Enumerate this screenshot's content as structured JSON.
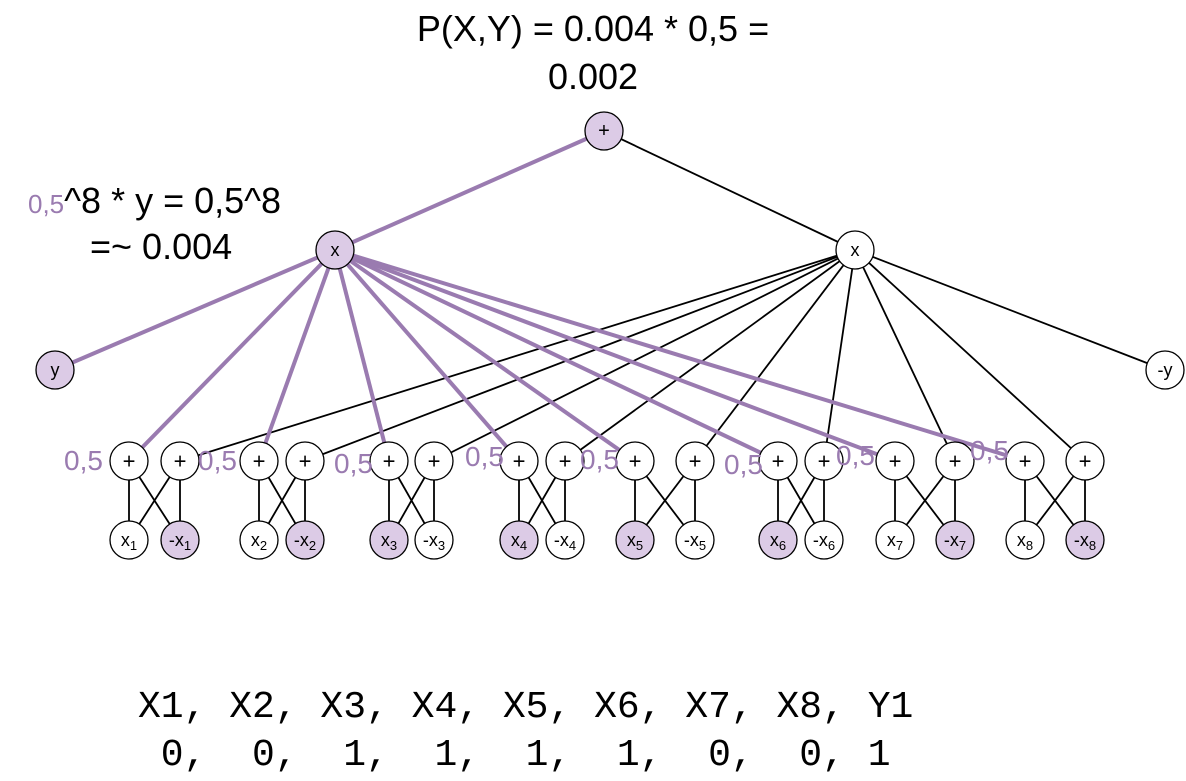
{
  "header": {
    "line1": "P(X,Y) = 0.004 * 0,5 =",
    "line2": "0.002"
  },
  "annotation": {
    "weight": "0,5",
    "line1_rest": "^8 * y = 0,5^8",
    "line2": "=~ 0.004"
  },
  "nodes": {
    "root": "+",
    "product_left": "x",
    "product_right": "x",
    "y": "y",
    "not_y": "-y",
    "sum": "+",
    "pairs": [
      {
        "pos": "x",
        "sub": "1",
        "neg": "-x",
        "selected": "neg"
      },
      {
        "pos": "x",
        "sub": "2",
        "neg": "-x",
        "selected": "neg"
      },
      {
        "pos": "x",
        "sub": "3",
        "neg": "-x",
        "selected": "pos"
      },
      {
        "pos": "x",
        "sub": "4",
        "neg": "-x",
        "selected": "pos"
      },
      {
        "pos": "x",
        "sub": "5",
        "neg": "-x",
        "selected": "pos"
      },
      {
        "pos": "x",
        "sub": "6",
        "neg": "-x",
        "selected": "pos"
      },
      {
        "pos": "x",
        "sub": "7",
        "neg": "-x",
        "selected": "neg"
      },
      {
        "pos": "x",
        "sub": "8",
        "neg": "-x",
        "selected": "neg"
      }
    ]
  },
  "edge_weight_label": "0,5",
  "table": {
    "header": "X1, X2, X3, X4, X5, X6, X7, X8, Y1",
    "values": " 0,  0,  1,  1,  1,  1,  0,  0, 1"
  },
  "colors": {
    "highlight_fill": "#dccbe6",
    "highlight_edge": "#9a7bb0",
    "edge": "#000000"
  }
}
